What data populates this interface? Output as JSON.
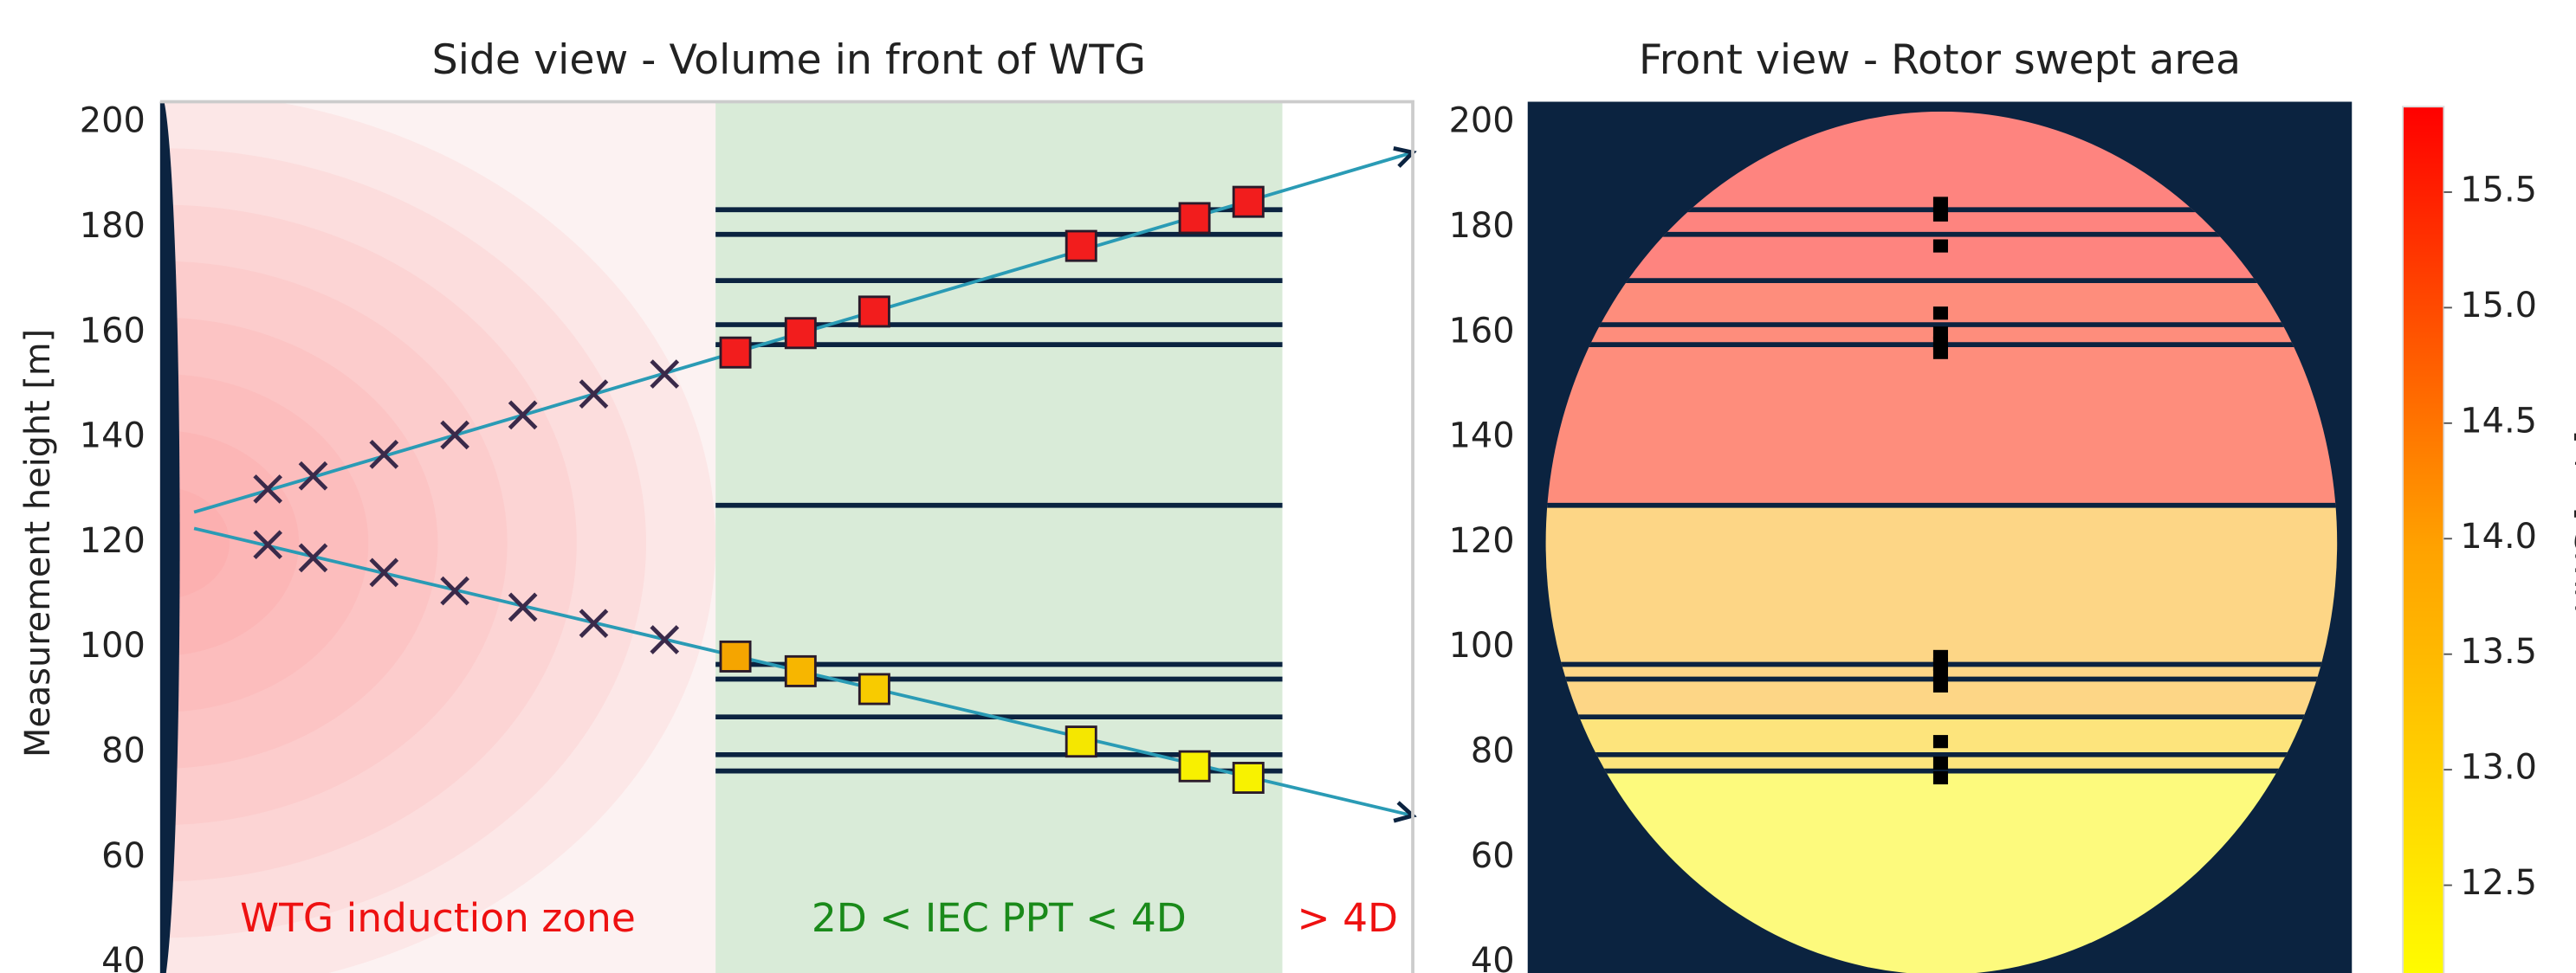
{
  "chart_data": [
    {
      "type": "side-view",
      "title": "Side view - Volume in front of WTG",
      "ylabel": "Measurement height [m]",
      "xlim": [
        0.04,
        4.46
      ],
      "ylim": [
        40,
        200
      ],
      "yticks": [
        40,
        60,
        80,
        100,
        120,
        140,
        160,
        180,
        200
      ],
      "zones": [
        {
          "from": 0.04,
          "to": 2,
          "color": "#fcf2f2",
          "label": "WTG induction zone",
          "label_color": "#ee1111"
        },
        {
          "from": 2,
          "to": 4,
          "color": "#d9ebd8",
          "label": "2D < IEC PPT < 4D",
          "label_color": "#1a8a1a"
        },
        {
          "from": 4,
          "to": 4.46,
          "color": "#ffffff",
          "label": "> 4D",
          "label_color": "#ee1111"
        }
      ],
      "lines": [
        183.5,
        178.8,
        170,
        161.6,
        157.8,
        127.2,
        96.9,
        94.1,
        86.9,
        79.7,
        76.6
      ],
      "line_color": "#0b2340",
      "beams": [
        {
          "color": "#2a9bb5",
          "x": [
            0.16,
            4.46
          ],
          "values": [
            125.9,
            194.4
          ]
        },
        {
          "color": "#2a9bb5",
          "x": [
            0.16,
            4.46
          ],
          "values": [
            122.8,
            68.1
          ]
        }
      ],
      "series": [
        {
          "marker": "x",
          "color": "#3a2a4a",
          "x": [
            0.42,
            0.58,
            0.83,
            1.08,
            1.32,
            1.57,
            1.82
          ],
          "values": [
            130.3,
            132.8,
            136.9,
            140.6,
            144.4,
            148.4,
            152.2
          ]
        },
        {
          "marker": "x",
          "color": "#3a2a4a",
          "x": [
            0.42,
            0.58,
            0.83,
            1.08,
            1.32,
            1.57,
            1.82
          ],
          "values": [
            119.7,
            117.2,
            114.4,
            110.9,
            107.8,
            104.7,
            101.6
          ]
        },
        {
          "marker": "square",
          "colors": [
            "#f21d1d",
            "#f21d1d",
            "#f21d1d",
            "#f21d1d",
            "#f21d1d",
            "#f21d1d"
          ],
          "x": [
            2.07,
            2.3,
            2.56,
            3.29,
            3.69,
            3.88
          ],
          "values": [
            156.3,
            160,
            164.1,
            176.6,
            181.9,
            185
          ]
        },
        {
          "marker": "square",
          "colors": [
            "#f5a500",
            "#f7b600",
            "#f8cb00",
            "#f5e700",
            "#f8f000",
            "#f8f200"
          ],
          "x": [
            2.07,
            2.3,
            2.56,
            3.29,
            3.69,
            3.88
          ],
          "values": [
            98.4,
            95.6,
            92.2,
            82.2,
            77.5,
            75.3
          ]
        }
      ]
    },
    {
      "type": "front-view",
      "title": "Front view - Rotor swept area",
      "ylim": [
        40,
        200
      ],
      "yticks": [
        40,
        60,
        80,
        100,
        120,
        140,
        160,
        180,
        200
      ],
      "background": "#0b2340",
      "bands": [
        {
          "from": 170,
          "to": 202.2,
          "color": "#fe847f"
        },
        {
          "from": 127.2,
          "to": 170,
          "color": "#fe8d7c"
        },
        {
          "from": 86.9,
          "to": 127.2,
          "color": "#fdd686"
        },
        {
          "from": 76.6,
          "to": 86.9,
          "color": "#fde47c"
        },
        {
          "from": 37.8,
          "to": 76.6,
          "color": "#fdfa7d"
        }
      ],
      "lines": [
        183.5,
        178.8,
        170,
        161.6,
        157.8,
        127.2,
        96.9,
        94.1,
        86.9,
        79.7,
        76.6
      ],
      "line_color": "#0b2340",
      "points": [
        184.7,
        182.5,
        176.6,
        163.8,
        160,
        158.1,
        156.3,
        98.4,
        96.9,
        95,
        92.8,
        82.2,
        78.1,
        75.3
      ],
      "colorbar": {
        "label": "HWS [m/s]",
        "clim": [
          12.12,
          15.87
        ],
        "colors": [
          "#ffff00",
          "#ffa200",
          "#ff0000"
        ],
        "ticks": [
          {
            "value": 12.5,
            "label": "12.5"
          },
          {
            "value": 13,
            "label": "13.0"
          },
          13.5,
          {
            "value": 14,
            "label": "14.0"
          },
          14.5,
          {
            "value": 15,
            "label": "15.0"
          },
          15.5
        ]
      }
    }
  ]
}
